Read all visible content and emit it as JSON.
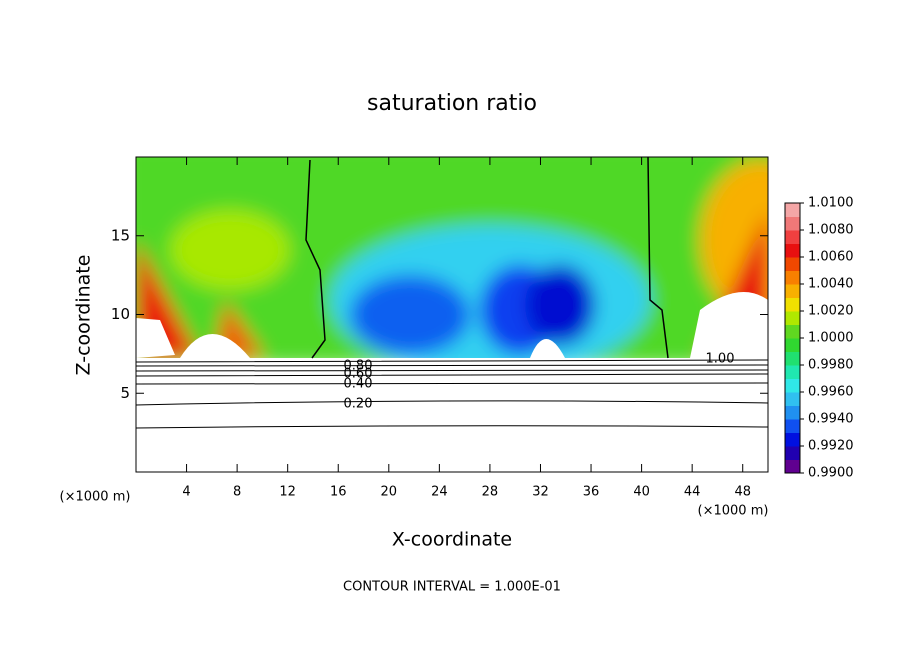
{
  "chart_data": {
    "type": "contour",
    "title": "saturation ratio",
    "x_label": "X-coordinate",
    "y_label": "Z-coordinate",
    "x_unit_left": "(×1000 m)",
    "x_unit_right": "(×1000 m)",
    "footer": "CONTOUR INTERVAL = 1.000E-01",
    "xlim": [
      0,
      50
    ],
    "xticks": [
      4,
      8,
      12,
      16,
      20,
      24,
      28,
      32,
      36,
      40,
      44,
      48
    ],
    "ylim": [
      0,
      20
    ],
    "yticks": [
      5,
      10,
      15
    ],
    "colorbar": {
      "lim": [
        0.99,
        1.01
      ],
      "ticks": [
        {
          "value": 1.01,
          "label": "1.0100"
        },
        {
          "value": 1.008,
          "label": "1.0080"
        },
        {
          "value": 1.006,
          "label": "1.0060"
        },
        {
          "value": 1.004,
          "label": "1.0040"
        },
        {
          "value": 1.002,
          "label": "1.0020"
        },
        {
          "value": 1.0,
          "label": "1.0000"
        },
        {
          "value": 0.998,
          "label": "0.9980"
        },
        {
          "value": 0.996,
          "label": "0.9960"
        },
        {
          "value": 0.994,
          "label": "0.9940"
        },
        {
          "value": 0.992,
          "label": "0.9920"
        },
        {
          "value": 0.99,
          "label": "0.9900"
        }
      ],
      "colors": [
        "#600090",
        "#2000b0",
        "#0010e0",
        "#1050f0",
        "#2090f0",
        "#30c0f0",
        "#30e8e8",
        "#20e8b0",
        "#20e070",
        "#30d830",
        "#60d820",
        "#b0e800",
        "#f0e000",
        "#f8b000",
        "#f88000",
        "#f04800",
        "#e81010",
        "#f04040",
        "#f07878",
        "#f4a6a6"
      ]
    },
    "contour_labels": [
      {
        "value": 0.2,
        "label": "0.20"
      },
      {
        "value": 0.4,
        "label": "0.40"
      },
      {
        "value": 0.6,
        "label": "0.60"
      },
      {
        "value": 0.8,
        "label": "0.80"
      },
      {
        "value": 1.0,
        "label": "1.00"
      }
    ]
  }
}
